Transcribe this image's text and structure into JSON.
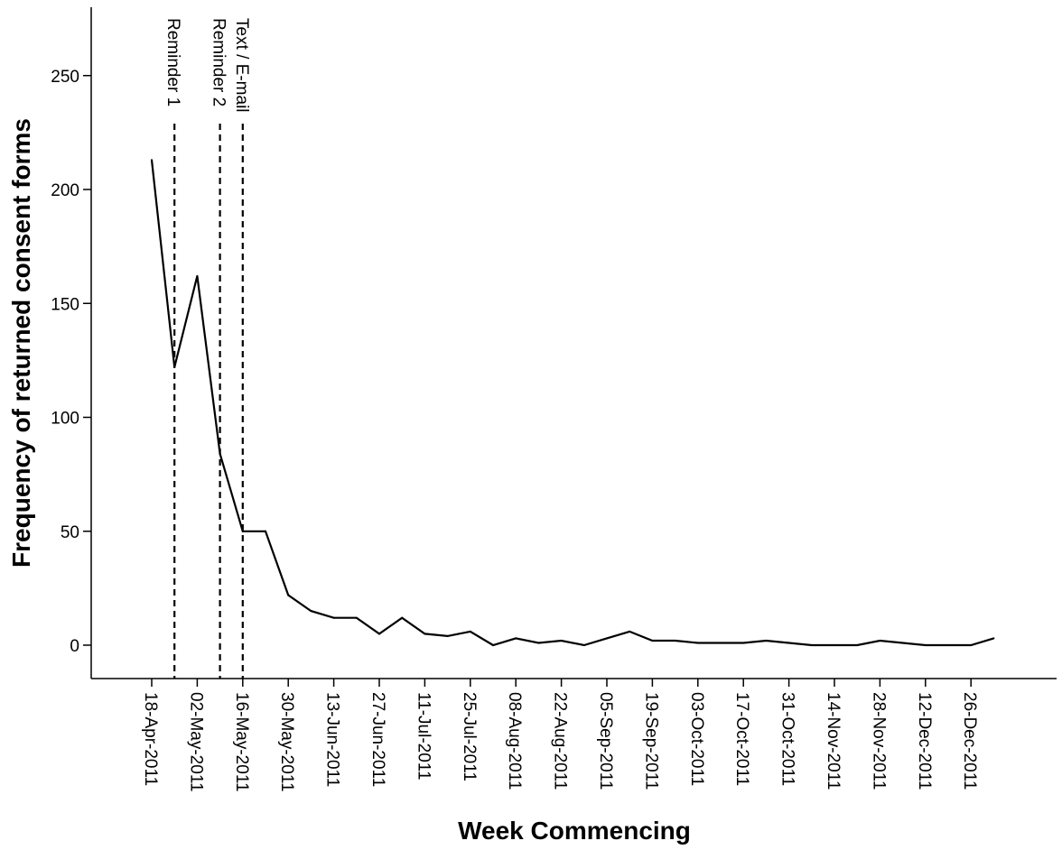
{
  "chart_data": {
    "type": "line",
    "xlabel": "Week Commencing",
    "ylabel": "Frequency of returned consent forms",
    "ylim": [
      -15,
      280
    ],
    "yticks": [
      0,
      50,
      100,
      150,
      200,
      250
    ],
    "x_tick_labels": [
      "18-Apr-2011",
      "02-May-2011",
      "16-May-2011",
      "30-May-2011",
      "13-Jun-2011",
      "27-Jun-2011",
      "11-Jul-2011",
      "25-Jul-2011",
      "08-Aug-2011",
      "22-Aug-2011",
      "05-Sep-2011",
      "19-Sep-2011",
      "03-Oct-2011",
      "17-Oct-2011",
      "31-Oct-2011",
      "14-Nov-2011",
      "28-Nov-2011",
      "12-Dec-2011",
      "26-Dec-2011"
    ],
    "x": [
      "18-Apr-2011",
      "25-Apr-2011",
      "02-May-2011",
      "09-May-2011",
      "16-May-2011",
      "23-May-2011",
      "30-May-2011",
      "06-Jun-2011",
      "13-Jun-2011",
      "20-Jun-2011",
      "27-Jun-2011",
      "04-Jul-2011",
      "11-Jul-2011",
      "18-Jul-2011",
      "25-Jul-2011",
      "01-Aug-2011",
      "08-Aug-2011",
      "15-Aug-2011",
      "22-Aug-2011",
      "29-Aug-2011",
      "05-Sep-2011",
      "12-Sep-2011",
      "19-Sep-2011",
      "26-Sep-2011",
      "03-Oct-2011",
      "10-Oct-2011",
      "17-Oct-2011",
      "24-Oct-2011",
      "31-Oct-2011",
      "07-Nov-2011",
      "14-Nov-2011",
      "21-Nov-2011",
      "28-Nov-2011",
      "05-Dec-2011",
      "12-Dec-2011",
      "19-Dec-2011",
      "26-Dec-2011",
      "02-Jan-2012"
    ],
    "series": [
      {
        "values": [
          213,
          122,
          162,
          84,
          50,
          50,
          22,
          15,
          12,
          12,
          5,
          12,
          5,
          4,
          6,
          0,
          3,
          1,
          2,
          0,
          3,
          6,
          2,
          2,
          1,
          1,
          1,
          2,
          1,
          0,
          0,
          0,
          2,
          1,
          0,
          0,
          0,
          3
        ]
      }
    ],
    "annotations": [
      {
        "label": "Reminder 1",
        "x": "25-Apr-2011",
        "style": "dashed"
      },
      {
        "label": "Reminder 2",
        "x": "09-May-2011",
        "style": "dashed"
      },
      {
        "label": "Text / E-mail",
        "x": "16-May-2011",
        "style": "dashed"
      }
    ],
    "grid": false,
    "legend": "none"
  }
}
